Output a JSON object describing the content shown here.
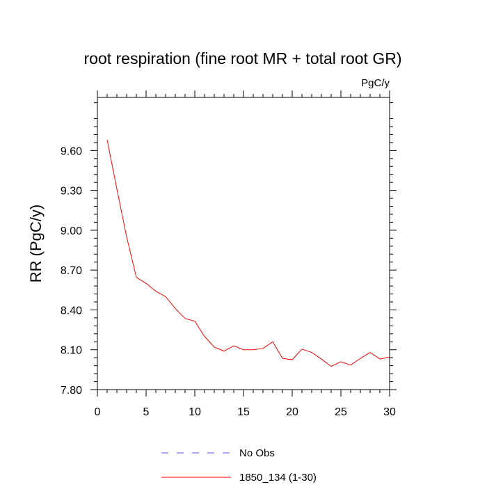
{
  "chart_data": {
    "type": "line",
    "title": "root respiration (fine root MR + total root GR)",
    "units_label": "PgC/y",
    "xlabel": "",
    "ylabel": "RR  (PgC/y)",
    "xlim": [
      0,
      30
    ],
    "ylim": [
      7.8,
      10.0
    ],
    "x_ticks": [
      0,
      5,
      10,
      15,
      20,
      25,
      30
    ],
    "x_tick_labels": [
      "0",
      "5",
      "10",
      "15",
      "20",
      "25",
      "30"
    ],
    "y_ticks": [
      7.8,
      8.1,
      8.4,
      8.7,
      9.0,
      9.3,
      9.6
    ],
    "y_tick_labels": [
      "7.80",
      "8.10",
      "8.40",
      "8.70",
      "9.00",
      "9.30",
      "9.60"
    ],
    "grid": false,
    "legend_position": "bottom",
    "series": [
      {
        "name": "1850_134 (1-30)",
        "color": "#ff0000",
        "style": "solid",
        "x": [
          1,
          2,
          3,
          4,
          5,
          6,
          7,
          8,
          9,
          10,
          11,
          12,
          13,
          14,
          15,
          16,
          17,
          18,
          19,
          20,
          21,
          22,
          23,
          24,
          25,
          26,
          27,
          28,
          29,
          30
        ],
        "y": [
          9.68,
          9.31,
          8.95,
          8.645,
          8.6,
          8.54,
          8.5,
          8.41,
          8.335,
          8.315,
          8.2,
          8.12,
          8.09,
          8.13,
          8.1,
          8.1,
          8.11,
          8.16,
          8.035,
          8.025,
          8.105,
          8.08,
          8.03,
          7.975,
          8.01,
          7.985,
          8.035,
          8.08,
          8.03,
          8.045
        ]
      }
    ],
    "legend": [
      {
        "name": "No Obs",
        "color": "#5555ee",
        "style": "dashed"
      },
      {
        "name": "1850_134 (1-30)",
        "color": "#ff0000",
        "style": "solid"
      }
    ]
  }
}
